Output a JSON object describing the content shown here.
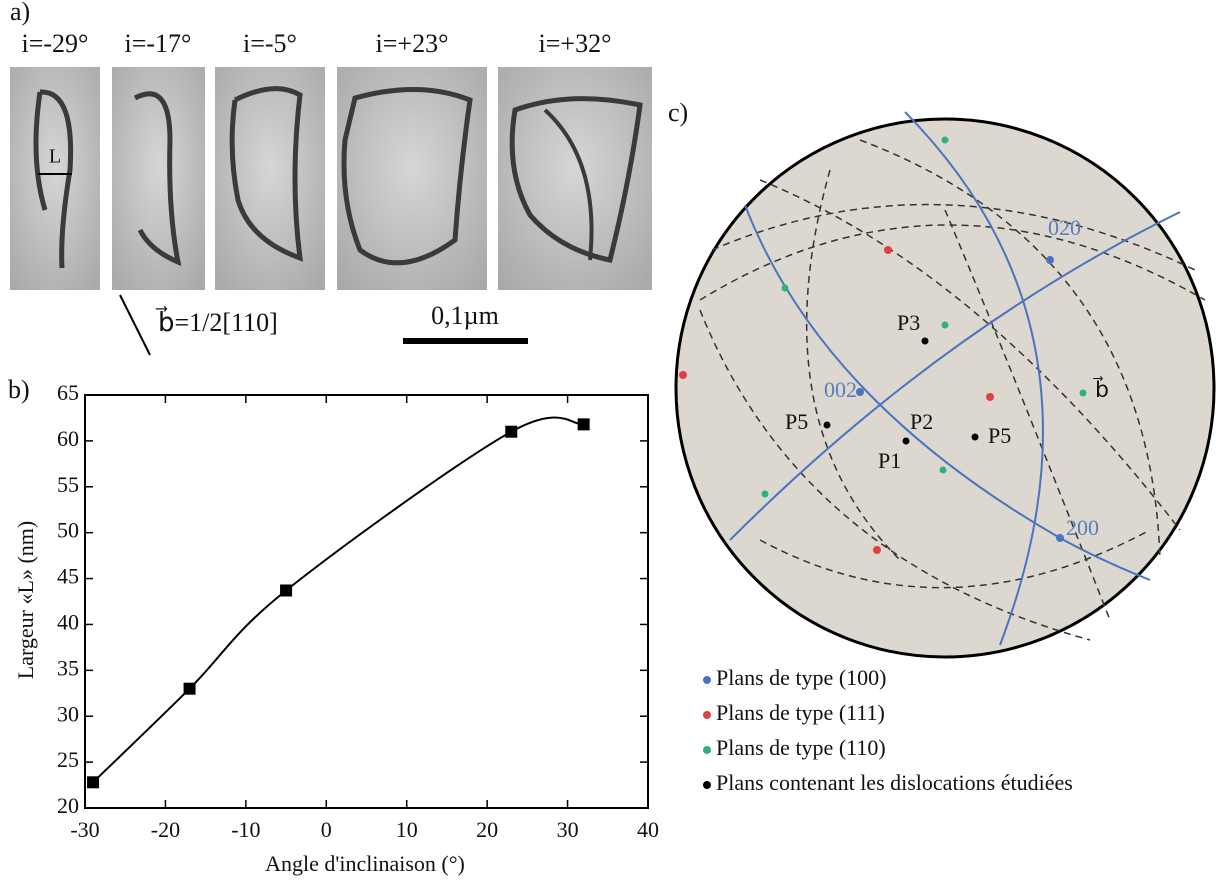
{
  "panel_a": {
    "label": "a)",
    "angles": [
      "i=-29°",
      "i=-17°",
      "i=-5°",
      "i=+23°",
      "i=+32°"
    ],
    "width_marker": "L",
    "burgers": "b⃗=1/2[110]",
    "scale_bar": "0,1µm"
  },
  "chart_data": {
    "type": "line",
    "panel_label": "b)",
    "x_label": "Angle d'inclinaison (°)",
    "y_label": "Largeur «L» (nm)",
    "x": [
      -29,
      -17,
      -5,
      23,
      32
    ],
    "values": [
      22.8,
      33,
      43.7,
      61,
      61.8
    ],
    "color": "#000000",
    "marker": "square",
    "xlim": [
      -30,
      40
    ],
    "xticks": [
      -30,
      -20,
      -10,
      0,
      10,
      20,
      30,
      40
    ],
    "ylim": [
      20,
      65
    ],
    "yticks": [
      20,
      25,
      30,
      35,
      40,
      45,
      50,
      55,
      60,
      65
    ]
  },
  "panel_c": {
    "label": "c)",
    "poles": [
      "020",
      "002",
      "200"
    ],
    "points": [
      "P3",
      "P5",
      "P2",
      "P1",
      "P5"
    ],
    "burgers": "b⃗",
    "legend": [
      {
        "label": "Plans de type (100)",
        "color": "#4a74c0"
      },
      {
        "label": "Plans de type (111)",
        "color": "#e04040"
      },
      {
        "label": "Plans de type (110)",
        "color": "#30b080"
      },
      {
        "label": "Plans contenant les dislocations étudiées",
        "color": "#000000"
      }
    ]
  }
}
